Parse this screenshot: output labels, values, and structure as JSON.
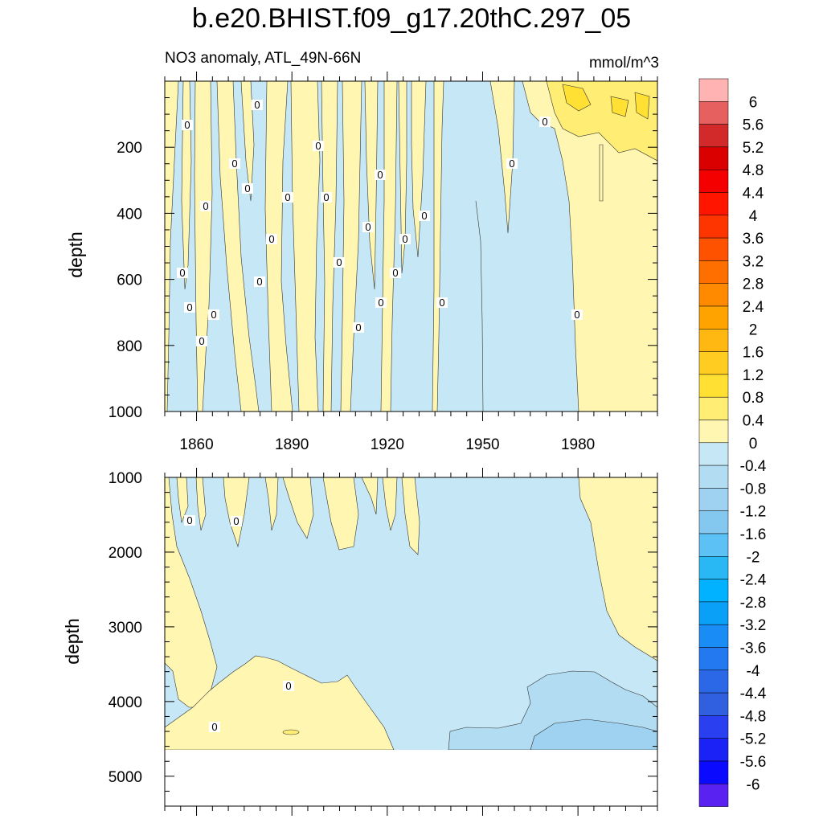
{
  "title": "b.e20.BHIST.f09_g17.20thC.297_05",
  "left_title": "NO3 anomaly, ATL_49N-66N",
  "right_title": "mmol/m^3",
  "colors": {
    "pos_0": "#fff7b1",
    "pos_04": "#ffee73",
    "pos_08": "#ffe033",
    "pos_12": "#ffcc22",
    "pos_16": "#ffb812",
    "pos_20": "#ffa300",
    "pos_24": "#ff8a00",
    "pos_28": "#ff6f00",
    "pos_32": "#ff5200",
    "pos_36": "#ff3500",
    "pos_40": "#ff1500",
    "pos_44": "#f50000",
    "pos_48": "#db0000",
    "pos_52": "#d22a2a",
    "pos_56": "#e66060",
    "pos_60": "#ffb3b3",
    "neg_0": "#c6e7f5",
    "neg_04": "#b1dcf2",
    "neg_08": "#9fd2f0",
    "neg_12": "#84c8f0",
    "neg_16": "#5cc1f5",
    "neg_20": "#2ab8f5",
    "neg_24": "#00b2ff",
    "neg_28": "#0aa0f8",
    "neg_32": "#1a8cf5",
    "neg_36": "#2279f0",
    "neg_40": "#2a68e8",
    "neg_44": "#3060e0",
    "neg_48": "#2a40f0",
    "neg_52": "#1a22f5",
    "neg_56": "#0a0aff",
    "neg_60": "#3422f0",
    "neg_64": "#5a22f0",
    "neg_68": "#8230f0"
  },
  "chart_data": {
    "type": "heatmap",
    "x_ticks": [
      1860,
      1890,
      1920,
      1950,
      1980
    ],
    "x_range": [
      1850,
      2005
    ],
    "contour_label": "0",
    "upper_panel": {
      "ylabel": "depth",
      "y_range": [
        0,
        1000
      ],
      "y_ticks": [
        200,
        400,
        600,
        800,
        1000
      ]
    },
    "lower_panel": {
      "ylabel": "depth",
      "y_range": [
        1000,
        5400
      ],
      "y_ticks": [
        1000,
        2000,
        3000,
        4000,
        5000
      ]
    },
    "colorbar": {
      "labels": [
        "6",
        "5.6",
        "5.2",
        "4.8",
        "4.4",
        "4",
        "3.6",
        "3.2",
        "2.8",
        "2.4",
        "2",
        "1.6",
        "1.2",
        "0.8",
        "0.4",
        "0",
        "-0.4",
        "-0.8",
        "-1.2",
        "-1.6",
        "-2",
        "-2.4",
        "-2.8",
        "-3.2",
        "-3.6",
        "-4",
        "-4.4",
        "-4.8",
        "-5.2",
        "-5.6",
        "-6"
      ]
    }
  }
}
